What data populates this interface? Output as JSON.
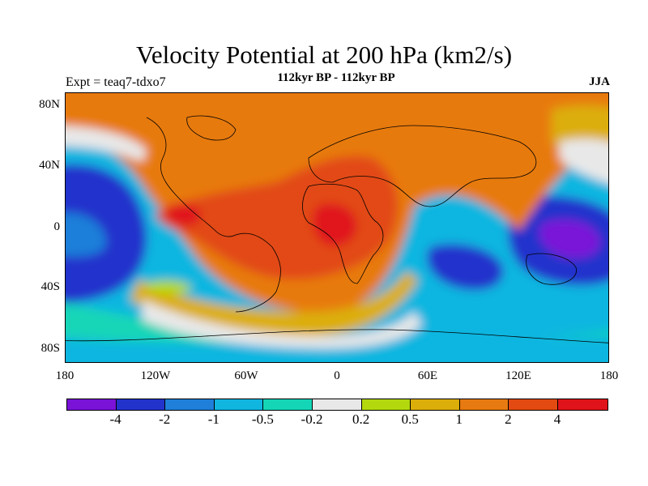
{
  "header": {
    "title": "Velocity Potential at 200 hPa (km2/s)",
    "subtitle": "112kyr BP - 112kyr BP",
    "left": "Expt = teaq7-tdxo7",
    "right": "JJA"
  },
  "axes": {
    "lat": [
      "80N",
      "40N",
      "0",
      "40S",
      "80S"
    ],
    "lon": [
      "180",
      "120W",
      "60W",
      "0",
      "60E",
      "120E",
      "180"
    ]
  },
  "legend": {
    "colors": [
      "#7a12d8",
      "#2233cc",
      "#1f7fd9",
      "#10b6e0",
      "#14d6b7",
      "#e8e8e8",
      "#b3d90e",
      "#dcae0a",
      "#e77a10",
      "#e24a12",
      "#e0131a"
    ],
    "labels": [
      "-4",
      "-2",
      "-1",
      "-0.5",
      "-0.2",
      "0.2",
      "0.5",
      "1",
      "2",
      "4"
    ]
  }
}
